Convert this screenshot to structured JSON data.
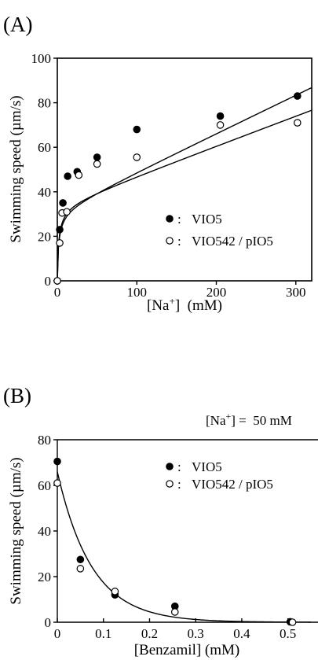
{
  "chart_data": [
    {
      "type": "scatter",
      "panel_label": "(A)",
      "xlabel": "[Na+]  (mM)",
      "ylabel": "Swimming speed (µm/s)",
      "xlim": [
        0,
        320
      ],
      "ylim": [
        0,
        100
      ],
      "xticks": [
        0,
        100,
        200,
        300
      ],
      "yticks": [
        0,
        20,
        40,
        60,
        80,
        100
      ],
      "legend_position": "center-right",
      "series": [
        {
          "name": "VIO5",
          "marker": "filled-circle",
          "x": [
            0,
            3,
            7,
            13,
            25,
            50,
            100,
            205,
            302
          ],
          "y": [
            0,
            23,
            35,
            47,
            49,
            55.5,
            68,
            74,
            83
          ]
        },
        {
          "name": "VIO542 / pIO5",
          "marker": "open-circle",
          "x": [
            0,
            3,
            6,
            12,
            27,
            50,
            100,
            205,
            302
          ],
          "y": [
            0,
            17,
            30.5,
            31,
            47.5,
            52.5,
            55.5,
            70,
            71
          ]
        }
      ]
    },
    {
      "type": "scatter",
      "panel_label": "(B)",
      "annotation": "[Na+] =  50 mM",
      "xlabel": "[Benzamil]  (mM)",
      "ylabel": "Swimming speed (µm/s)",
      "xlim": [
        0,
        0.55
      ],
      "ylim": [
        0,
        80
      ],
      "xticks": [
        0,
        0.1,
        0.2,
        0.3,
        0.4,
        0.5
      ],
      "yticks": [
        0,
        20,
        40,
        60,
        80
      ],
      "legend_position": "top-right",
      "series": [
        {
          "name": "VIO5",
          "marker": "filled-circle",
          "x": [
            0,
            0.05,
            0.125,
            0.255,
            0.505
          ],
          "y": [
            70.5,
            27.5,
            12,
            7,
            0.2
          ]
        },
        {
          "name": "VIO542 / pIO5",
          "marker": "open-circle",
          "x": [
            0,
            0.05,
            0.125,
            0.255,
            0.51
          ],
          "y": [
            61,
            23.5,
            13.5,
            4.5,
            0
          ]
        }
      ]
    }
  ]
}
